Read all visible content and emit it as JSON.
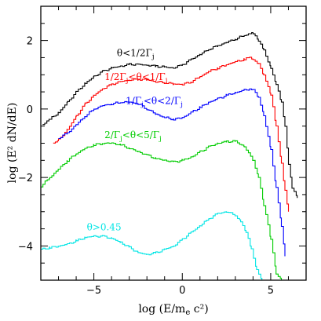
{
  "chart_data": {
    "type": "line",
    "title": "",
    "xlabel": "log (E/m_e c²)",
    "ylabel": "log (E² dN/dE)",
    "xlim": [
      -8,
      7
    ],
    "ylim": [
      -5,
      3
    ],
    "xticks": [
      -5,
      0,
      5
    ],
    "yticks": [
      -4,
      -2,
      0,
      2
    ],
    "grid": false,
    "legend": "inline labels",
    "series": [
      {
        "name": "θ<1/2Γ_j",
        "color": "#000000",
        "x": [
          -7.9,
          -7.5,
          -7.0,
          -6.5,
          -6.0,
          -5.5,
          -5.0,
          -4.5,
          -4.0,
          -3.5,
          -3.0,
          -2.5,
          -2.0,
          -1.5,
          -1.0,
          -0.5,
          0.0,
          0.5,
          1.0,
          1.5,
          2.0,
          2.5,
          3.0,
          3.5,
          3.8,
          4.0,
          4.3,
          4.6,
          5.0,
          5.3,
          5.6,
          5.8,
          6.0,
          6.2,
          6.5
        ],
        "y": [
          -0.45,
          -0.3,
          -0.1,
          0.2,
          0.5,
          0.75,
          0.95,
          1.1,
          1.2,
          1.25,
          1.3,
          1.3,
          1.28,
          1.25,
          1.22,
          1.2,
          1.3,
          1.45,
          1.6,
          1.75,
          1.85,
          1.95,
          2.05,
          2.15,
          2.2,
          2.2,
          2.0,
          1.7,
          1.2,
          0.7,
          0.2,
          -0.5,
          -1.6,
          -2.3,
          -2.6
        ]
      },
      {
        "name": "1/2Γ_j<θ<1/Γ_j",
        "color": "#ff0000",
        "x": [
          -7.3,
          -7.0,
          -6.5,
          -6.0,
          -5.5,
          -5.0,
          -4.5,
          -4.0,
          -3.5,
          -3.0,
          -2.5,
          -2.0,
          -1.5,
          -1.0,
          -0.5,
          0.0,
          0.5,
          1.0,
          1.5,
          2.0,
          2.5,
          3.0,
          3.5,
          3.8,
          4.0,
          4.3,
          4.6,
          5.0,
          5.3,
          5.6,
          5.8,
          6.0
        ],
        "y": [
          -1.0,
          -0.9,
          -0.6,
          -0.2,
          0.15,
          0.4,
          0.6,
          0.72,
          0.8,
          0.85,
          0.87,
          0.85,
          0.8,
          0.77,
          0.73,
          0.72,
          0.8,
          0.95,
          1.1,
          1.2,
          1.3,
          1.38,
          1.45,
          1.5,
          1.45,
          1.3,
          1.0,
          0.4,
          -0.5,
          -1.6,
          -2.4,
          -3.0
        ]
      },
      {
        "name": "1/Γ_j<θ<2/Γ_j",
        "color": "#0000ff",
        "x": [
          -7.0,
          -6.5,
          -6.0,
          -5.5,
          -5.0,
          -4.5,
          -4.0,
          -3.5,
          -3.0,
          -2.5,
          -2.0,
          -1.5,
          -1.0,
          -0.5,
          0.0,
          0.5,
          1.0,
          1.5,
          2.0,
          2.5,
          3.0,
          3.5,
          3.8,
          4.0,
          4.3,
          4.6,
          5.0,
          5.3,
          5.6,
          5.8
        ],
        "y": [
          -0.85,
          -0.7,
          -0.45,
          -0.2,
          0.0,
          0.1,
          0.15,
          0.2,
          0.2,
          0.15,
          0.0,
          -0.15,
          -0.25,
          -0.3,
          -0.25,
          -0.1,
          0.05,
          0.2,
          0.3,
          0.4,
          0.48,
          0.55,
          0.58,
          0.55,
          0.35,
          -0.2,
          -1.2,
          -2.3,
          -3.4,
          -4.3
        ]
      },
      {
        "name": "2/Γ_j<θ<5/Γ_j",
        "color": "#00cc00",
        "x": [
          -8.0,
          -7.5,
          -7.0,
          -6.5,
          -6.0,
          -5.5,
          -5.0,
          -4.5,
          -4.0,
          -3.5,
          -3.0,
          -2.5,
          -2.0,
          -1.5,
          -1.0,
          -0.5,
          0.0,
          0.5,
          1.0,
          1.5,
          2.0,
          2.5,
          3.0,
          3.5,
          4.0,
          4.3,
          4.6,
          5.0,
          5.3,
          5.6
        ],
        "y": [
          -2.25,
          -2.0,
          -1.75,
          -1.5,
          -1.3,
          -1.15,
          -1.05,
          -1.0,
          -1.0,
          -1.05,
          -1.15,
          -1.25,
          -1.35,
          -1.45,
          -1.5,
          -1.55,
          -1.5,
          -1.4,
          -1.25,
          -1.1,
          -1.0,
          -0.95,
          -0.95,
          -1.1,
          -1.5,
          -2.0,
          -2.8,
          -3.8,
          -4.8,
          -5.0
        ]
      },
      {
        "name": "θ>0.45",
        "color": "#00e5e5",
        "x": [
          -8.0,
          -7.5,
          -7.0,
          -6.5,
          -6.0,
          -5.5,
          -5.0,
          -4.5,
          -4.0,
          -3.5,
          -3.0,
          -2.5,
          -2.0,
          -1.5,
          -1.0,
          -0.5,
          0.0,
          0.5,
          1.0,
          1.5,
          2.0,
          2.5,
          3.0,
          3.3,
          3.6,
          3.9,
          4.2,
          4.5
        ],
        "y": [
          -4.1,
          -4.05,
          -4.0,
          -3.95,
          -3.85,
          -3.75,
          -3.72,
          -3.72,
          -3.78,
          -3.9,
          -4.05,
          -4.2,
          -4.25,
          -4.2,
          -4.1,
          -4.0,
          -3.8,
          -3.6,
          -3.4,
          -3.2,
          -3.05,
          -3.0,
          -3.1,
          -3.3,
          -3.6,
          -4.1,
          -4.7,
          -5.0
        ]
      }
    ]
  }
}
